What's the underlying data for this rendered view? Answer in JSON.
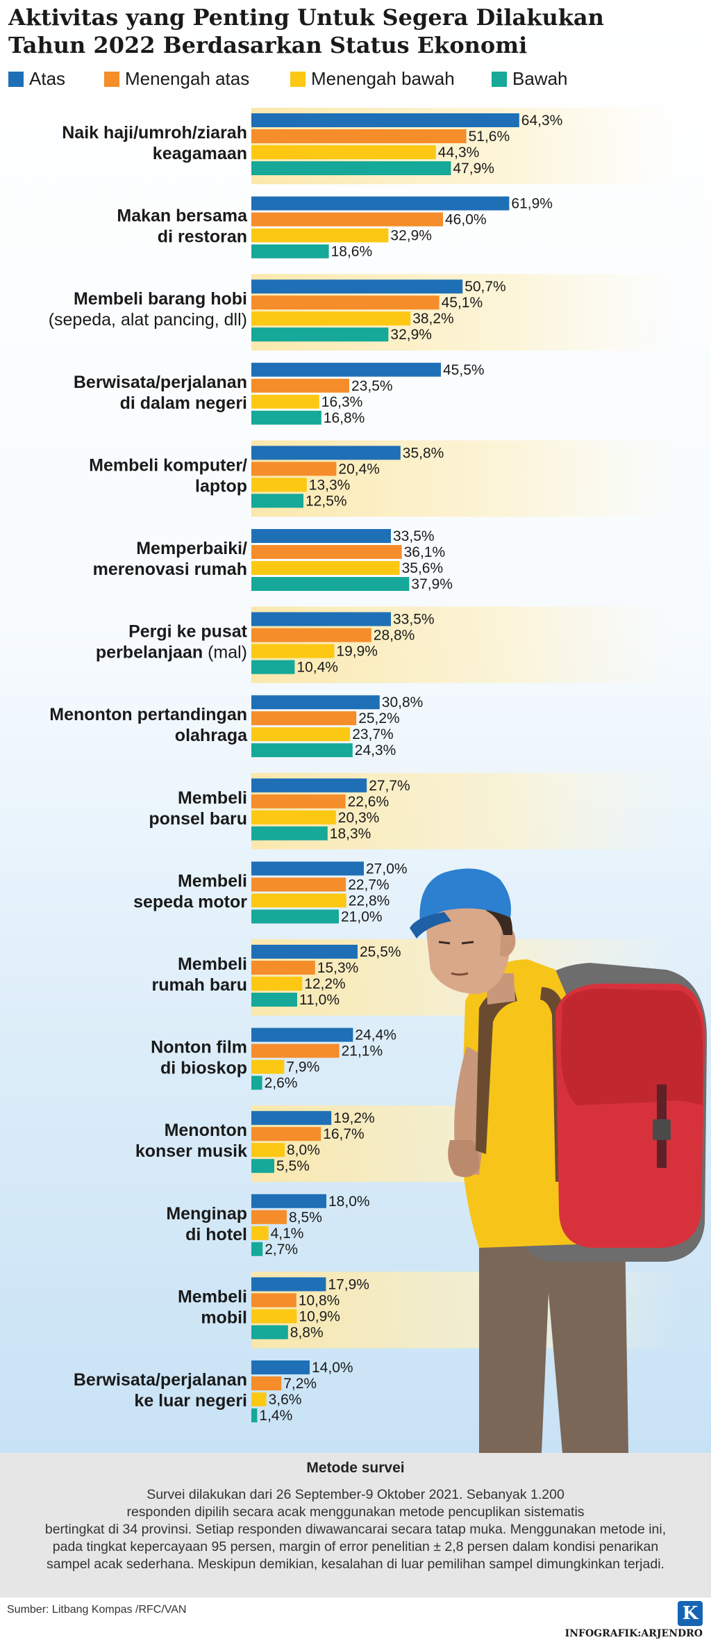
{
  "chart_data": {
    "type": "bar",
    "orientation": "horizontal",
    "title": "Aktivitas yang Penting Untuk Segera Dilakukan Tahun 2022 Berdasarkan Status Ekonomi",
    "title_lines": [
      "Aktivitas yang Penting Untuk Segera Dilakukan",
      "Tahun 2022 Berdasarkan Status Ekonomi"
    ],
    "legend_position": "top",
    "xlim": [
      0,
      100
    ],
    "value_suffix": "%",
    "series": [
      {
        "name": "Atas",
        "color": "#1f6fb6",
        "values": [
          64.3,
          61.9,
          50.7,
          45.5,
          35.8,
          33.5,
          33.5,
          30.8,
          27.7,
          27.0,
          25.5,
          24.4,
          19.2,
          18.0,
          17.9,
          14.0
        ]
      },
      {
        "name": "Menengah atas",
        "color": "#f58d2a",
        "values": [
          51.6,
          46.0,
          45.1,
          23.5,
          20.4,
          36.1,
          28.8,
          25.2,
          22.6,
          22.7,
          15.3,
          21.1,
          16.7,
          8.5,
          10.8,
          7.2
        ]
      },
      {
        "name": "Menengah bawah",
        "color": "#fcc813",
        "values": [
          44.3,
          32.9,
          38.2,
          16.3,
          13.3,
          35.6,
          19.9,
          23.7,
          20.3,
          22.8,
          12.2,
          7.9,
          8.0,
          4.1,
          10.9,
          3.6
        ]
      },
      {
        "name": "Bawah",
        "color": "#16a898",
        "values": [
          47.9,
          18.6,
          32.9,
          16.8,
          12.5,
          37.9,
          10.4,
          24.3,
          18.3,
          21.0,
          11.0,
          2.6,
          5.5,
          2.7,
          8.8,
          1.4
        ]
      }
    ],
    "value_labels": [
      [
        "64,3%",
        "51,6%",
        "44,3%",
        "47,9%"
      ],
      [
        "61,9%",
        "46,0%",
        "32,9%",
        "18,6%"
      ],
      [
        "50,7%",
        "45,1%",
        "38,2%",
        "32,9%"
      ],
      [
        "45,5%",
        "23,5%",
        "16,3%",
        "16,8%"
      ],
      [
        "35,8%",
        "20,4%",
        "13,3%",
        "12,5%"
      ],
      [
        "33,5%",
        "36,1%",
        "35,6%",
        "37,9%"
      ],
      [
        "33,5%",
        "28,8%",
        "19,9%",
        "10,4%"
      ],
      [
        "30,8%",
        "25,2%",
        "23,7%",
        "24,3%"
      ],
      [
        "27,7%",
        "22,6%",
        "20,3%",
        "18,3%"
      ],
      [
        "27,0%",
        "22,7%",
        "22,8%",
        "21,0%"
      ],
      [
        "25,5%",
        "15,3%",
        "12,2%",
        "11,0%"
      ],
      [
        "24,4%",
        "21,1%",
        "7,9%",
        "2,6%"
      ],
      [
        "19,2%",
        "16,7%",
        "8,0%",
        "5,5%"
      ],
      [
        "18,0%",
        "8,5%",
        "4,1%",
        "2,7%"
      ],
      [
        "17,9%",
        "10,8%",
        "10,9%",
        "8,8%"
      ],
      [
        "14,0%",
        "7,2%",
        "3,6%",
        "1,4%"
      ]
    ],
    "categories": [
      {
        "name": "Naik haji/umroh/ziarah keagamaan",
        "lines": [
          {
            "bold": "Naik haji/umroh/ziarah"
          },
          {
            "bold": "keagamaan"
          }
        ]
      },
      {
        "name": "Makan bersama di restoran",
        "lines": [
          {
            "bold": "Makan bersama"
          },
          {
            "bold": "di restoran"
          }
        ]
      },
      {
        "name": "Membeli barang hobi (sepeda, alat pancing, dll)",
        "lines": [
          {
            "bold": "Membeli barang hobi"
          },
          {
            "light": "(sepeda, alat pancing, dll)"
          }
        ]
      },
      {
        "name": "Berwisata/perjalanan di dalam negeri",
        "lines": [
          {
            "bold": "Berwisata/perjalanan"
          },
          {
            "bold": "di dalam negeri"
          }
        ]
      },
      {
        "name": "Membeli komputer/ laptop",
        "lines": [
          {
            "bold": "Membeli komputer/"
          },
          {
            "bold": "laptop"
          }
        ]
      },
      {
        "name": "Memperbaiki/ merenovasi rumah",
        "lines": [
          {
            "bold": "Memperbaiki/"
          },
          {
            "bold": "merenovasi rumah"
          }
        ]
      },
      {
        "name": "Pergi ke pusat perbelanjaan (mal)",
        "lines": [
          {
            "bold": "Pergi ke pusat"
          },
          {
            "bold": "perbelanjaan ",
            "light": "(mal)"
          }
        ]
      },
      {
        "name": "Menonton pertandingan olahraga",
        "lines": [
          {
            "bold": "Menonton pertandingan"
          },
          {
            "bold": "olahraga"
          }
        ]
      },
      {
        "name": "Membeli ponsel baru",
        "lines": [
          {
            "bold": "Membeli"
          },
          {
            "bold": "ponsel baru"
          }
        ]
      },
      {
        "name": "Membeli sepeda motor",
        "lines": [
          {
            "bold": "Membeli"
          },
          {
            "bold": "sepeda motor"
          }
        ]
      },
      {
        "name": "Membeli rumah baru",
        "lines": [
          {
            "bold": "Membeli"
          },
          {
            "bold": "rumah baru"
          }
        ]
      },
      {
        "name": "Nonton film di bioskop",
        "lines": [
          {
            "bold": "Nonton film"
          },
          {
            "bold": "di bioskop"
          }
        ]
      },
      {
        "name": "Menonton konser musik",
        "lines": [
          {
            "bold": "Menonton"
          },
          {
            "bold": "konser musik"
          }
        ]
      },
      {
        "name": "Menginap di hotel",
        "lines": [
          {
            "bold": "Menginap"
          },
          {
            "bold": "di hotel"
          }
        ]
      },
      {
        "name": "Membeli mobil",
        "lines": [
          {
            "bold": "Membeli"
          },
          {
            "bold": "mobil"
          }
        ]
      },
      {
        "name": "Berwisata/perjalanan ke luar negeri",
        "lines": [
          {
            "bold": "Berwisata/perjalanan"
          },
          {
            "bold": "ke luar negeri"
          }
        ]
      }
    ]
  },
  "method": {
    "title": "Metode survei",
    "lines": [
      "Survei dilakukan dari 26 September-9 Oktober 2021. Sebanyak 1.200",
      "responden dipilih secara acak menggunakan metode pencuplikan sistematis",
      "bertingkat di 34 provinsi. Setiap responden diwawancarai secara tatap muka. Menggunakan metode ini,",
      "pada tingkat kepercayaan 95 persen, margin of error penelitian ± 2,8 persen dalam kondisi penarikan",
      "sampel acak sederhana. Meskipun demikian, kesalahan di luar pemilihan sampel dimungkinkan terjadi."
    ]
  },
  "source": "Sumber: Litbang Kompas /RFC/VAN",
  "logo_letter": "K",
  "credit": "INFOGRAFIK:ARJENDRO",
  "illustration": "backpacker-with-red-backpack"
}
